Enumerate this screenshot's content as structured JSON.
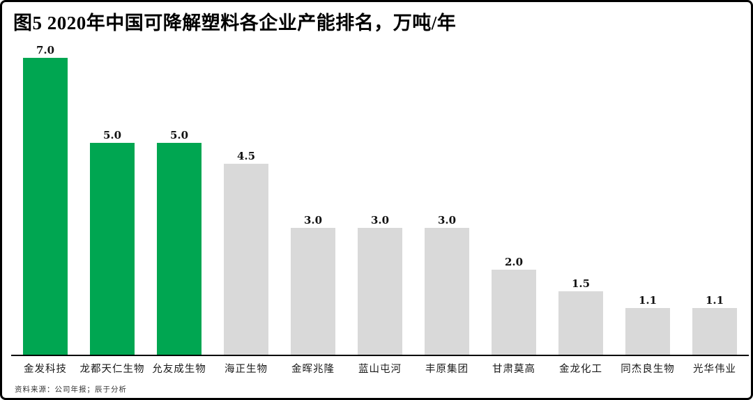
{
  "title": "图5 2020年中国可降解塑料各企业产能排名，万吨/年",
  "footer": {
    "source": "资料来源：公司年报；辰于分析"
  },
  "colors": {
    "highlight_green": "#00A651",
    "default_gray": "#D9D9D9",
    "axis_black": "#000000"
  },
  "chart_data": {
    "type": "bar",
    "title": "图5 2020年中国可降解塑料各企业产能排名，万吨/年",
    "unit": "万吨/年",
    "xlabel": "",
    "ylabel": "",
    "ylim": [
      0,
      7.4
    ],
    "grid": false,
    "legend": false,
    "categories": [
      "金发科技",
      "龙都天仁生物",
      "允友成生物",
      "海正生物",
      "金晖兆隆",
      "蓝山屯河",
      "丰原集团",
      "甘肃莫高",
      "金龙化工",
      "同杰良生物",
      "光华伟业"
    ],
    "values": [
      7.0,
      5.0,
      5.0,
      4.5,
      3.0,
      3.0,
      3.0,
      2.0,
      1.5,
      1.1,
      1.1
    ],
    "value_labels": [
      "7.0",
      "5.0",
      "5.0",
      "4.5",
      "3.0",
      "3.0",
      "3.0",
      "2.0",
      "1.5",
      "1.1",
      "1.1"
    ],
    "highlighted": [
      true,
      true,
      true,
      false,
      false,
      false,
      false,
      false,
      false,
      false,
      false
    ],
    "bar_colors": {
      "highlight": "#00A651",
      "default": "#D9D9D9"
    }
  }
}
